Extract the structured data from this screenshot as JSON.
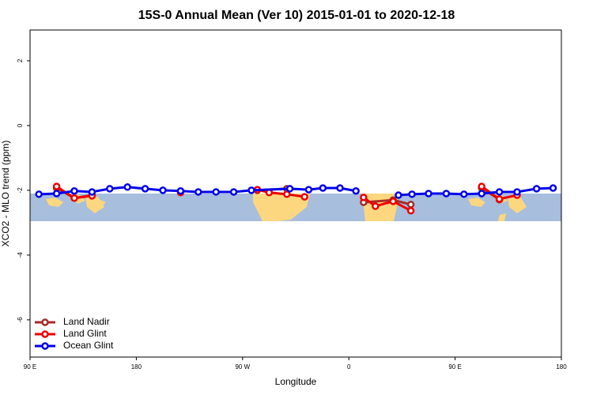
{
  "chart_data": {
    "type": "line",
    "title": "15S-0 Annual Mean (Ver 10)   2015-01-01 to 2020-12-18",
    "x_label": "Longitude",
    "y_label": "XCO2 - MLO trend (ppm)",
    "xlim": [
      90,
      540
    ],
    "ylim": [
      -7.15,
      2.95
    ],
    "xticks": [
      {
        "value": 90,
        "label": "90 E"
      },
      {
        "value": 180,
        "label": "180"
      },
      {
        "value": 270,
        "label": "90 W"
      },
      {
        "value": 360,
        "label": "0"
      },
      {
        "value": 450,
        "label": "90 E"
      },
      {
        "value": 540,
        "label": "180"
      }
    ],
    "yticks": [
      -6,
      -4,
      -2,
      0,
      2
    ],
    "legend": "bottom-left",
    "series": [
      {
        "name": "Land Nadir",
        "color": "#a52a2a",
        "x": [
          112.5,
          127.5,
          142.5,
          210,
          282.5,
          307.5,
          340,
          372.5,
          397.5,
          412.5,
          440,
          472.5,
          487.5
        ],
        "values": [
          -1.93,
          -2.24,
          -2.15,
          null,
          -2.0,
          -1.95,
          null,
          -2.37,
          -2.3,
          -2.44,
          null,
          -1.93,
          -2.29
        ]
      },
      {
        "name": "Land Glint",
        "color": "#ee0000",
        "x": [
          112.5,
          127.5,
          142.5,
          180,
          217.5,
          250,
          282.5,
          292.5,
          307.5,
          322.5,
          350,
          372.5,
          382.5,
          397.5,
          412.5,
          440,
          472.5,
          487.5,
          502.5
        ],
        "values": [
          -1.88,
          -2.24,
          -2.17,
          null,
          -2.07,
          null,
          -1.98,
          -2.07,
          -2.12,
          -2.2,
          null,
          -2.22,
          -2.49,
          -2.34,
          -2.63,
          null,
          -1.88,
          -2.27,
          -2.15
        ]
      },
      {
        "name": "Ocean Glint",
        "color": "#0000ee",
        "x": [
          97.5,
          112.5,
          127.5,
          142.5,
          157.5,
          172.5,
          187.5,
          202.5,
          217.5,
          232.5,
          247.5,
          262.5,
          277.5,
          310,
          326,
          338,
          352.5,
          366,
          385,
          402,
          413.5,
          427.5,
          442.5,
          457.5,
          472.5,
          487.5,
          502.5,
          519,
          533
        ],
        "values": [
          -2.12,
          -2.1,
          -2.02,
          -2.05,
          -1.95,
          -1.9,
          -1.95,
          -2.0,
          -2.02,
          -2.05,
          -2.05,
          -2.05,
          -2.0,
          -1.95,
          -1.98,
          -1.93,
          -1.93,
          -2.02,
          null,
          -2.15,
          -2.12,
          -2.1,
          -2.1,
          -2.12,
          -2.1,
          -2.05,
          -2.05,
          -1.95,
          -1.93
        ]
      }
    ]
  }
}
